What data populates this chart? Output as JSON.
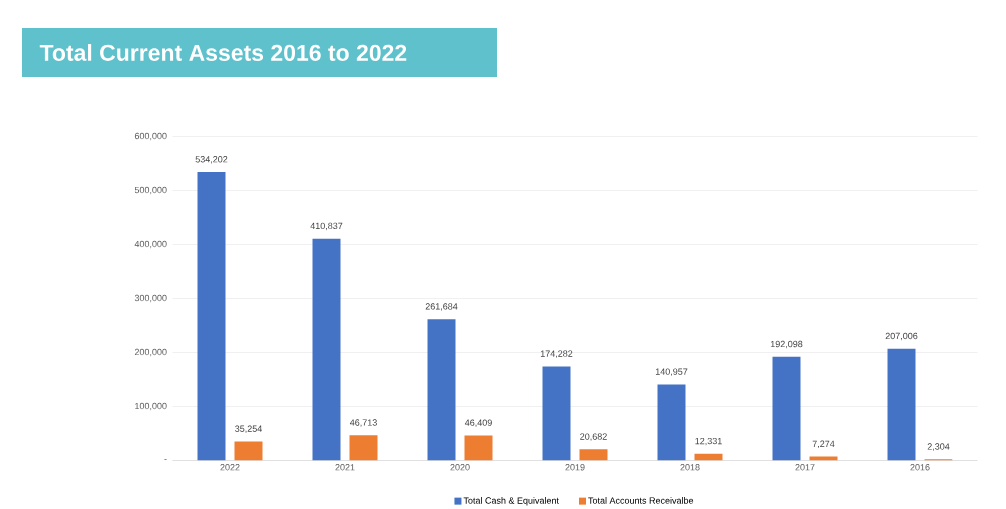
{
  "chart_data": {
    "type": "bar",
    "title": "Total Current Assets 2016 to 2022",
    "categories": [
      "2022",
      "2021",
      "2020",
      "2019",
      "2018",
      "2017",
      "2016"
    ],
    "series": [
      {
        "name": "Total Cash & Equivalent",
        "color": "#4472c4",
        "values": [
          534202,
          410837,
          261684,
          174282,
          140957,
          192098,
          207006
        ],
        "value_labels": [
          "534,202",
          "410,837",
          "261,684",
          "174,282",
          "140,957",
          "192,098",
          "207,006"
        ]
      },
      {
        "name": "Total Accounts Receivalbe",
        "color": "#ed7d31",
        "values": [
          35254,
          46713,
          46409,
          20682,
          12331,
          7274,
          2304
        ],
        "value_labels": [
          "35,254",
          "46,713",
          "46,409",
          "20,682",
          "12,331",
          "7,274",
          "2,304"
        ]
      }
    ],
    "ylim": [
      0,
      600000
    ],
    "yticks": [
      {
        "value": 0,
        "label": "-"
      },
      {
        "value": 100000,
        "label": "100,000"
      },
      {
        "value": 200000,
        "label": "200,000"
      },
      {
        "value": 300000,
        "label": "300,000"
      },
      {
        "value": 400000,
        "label": "400,000"
      },
      {
        "value": 500000,
        "label": "500,000"
      },
      {
        "value": 600000,
        "label": "600,000"
      }
    ],
    "grid": "y",
    "legend": "bottom"
  }
}
